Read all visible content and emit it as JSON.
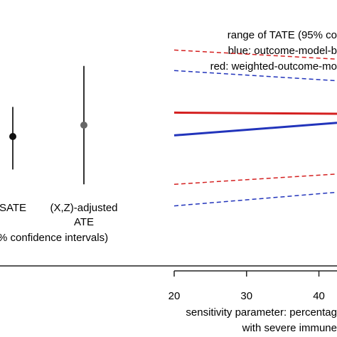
{
  "chart_data": [
    {
      "type": "scatter",
      "subtype": "point-estimate-with-confidence-intervals",
      "categories": [
        "SATE",
        "(X,Z)-adjusted ATE"
      ],
      "category_labels": [
        [
          "SATE"
        ],
        [
          "(X,Z)-adjusted",
          "ATE"
        ]
      ],
      "points": [
        {
          "category": "SATE",
          "estimate": 0.05,
          "lower": -0.24,
          "upper": 0.31,
          "color": "#111111"
        },
        {
          "category": "(X,Z)-adjusted ATE",
          "estimate": 0.15,
          "lower": -0.37,
          "upper": 0.67,
          "color": "#666666"
        }
      ],
      "caption_fragment": "% confidence intervals)",
      "ylim": [
        -1,
        1
      ],
      "grid": false,
      "legend": "none"
    },
    {
      "type": "line",
      "annotation_lines": [
        "range of TATE (95% co",
        "blue: outcome-model-b",
        "red: weighted-outcome-mo"
      ],
      "xlabel_lines": [
        "sensitivity parameter: percentag",
        "with severe immune"
      ],
      "x_ticks": [
        20,
        30,
        40
      ],
      "xlim": [
        20,
        42.5
      ],
      "ylim": [
        -1,
        1
      ],
      "x": [
        20,
        42.5
      ],
      "series": [
        {
          "style": "solid",
          "color": "#d42020",
          "values": [
            0.26,
            0.25
          ]
        },
        {
          "style": "solid",
          "color": "#2234bb",
          "values": [
            0.06,
            0.17
          ]
        },
        {
          "style": "dashed",
          "color": "#d42020",
          "values": [
            0.81,
            0.73
          ]
        },
        {
          "style": "dashed",
          "color": "#2234bb",
          "values": [
            0.63,
            0.54
          ]
        },
        {
          "style": "dashed",
          "color": "#d42020",
          "values": [
            -0.37,
            -0.28
          ]
        },
        {
          "style": "dashed",
          "color": "#2234bb",
          "values": [
            -0.56,
            -0.44
          ]
        }
      ],
      "grid": false,
      "legend": "none"
    }
  ]
}
